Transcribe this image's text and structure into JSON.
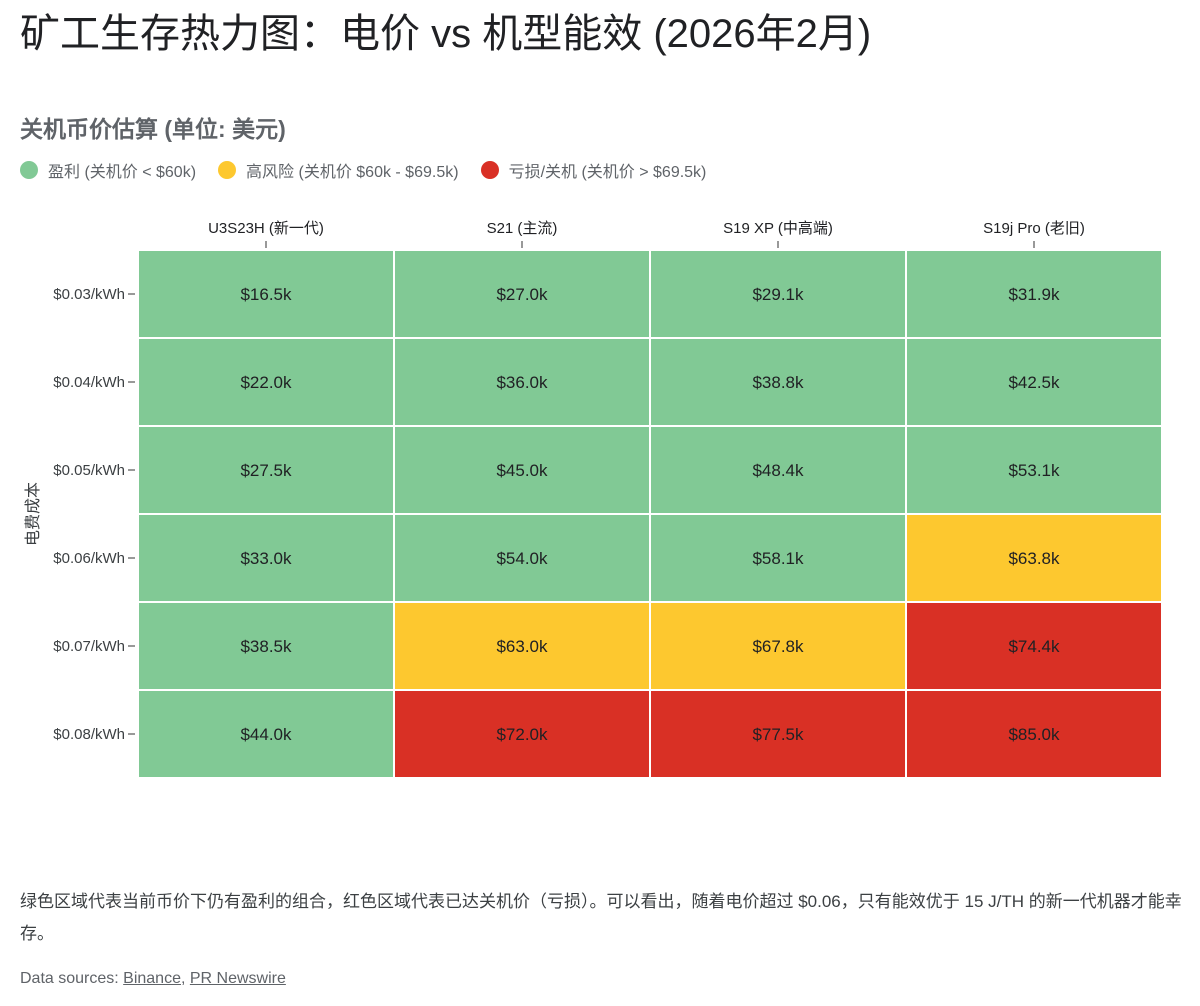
{
  "title": "矿工生存热力图：电价 vs 机型能效 (2026年2月)",
  "subtitle": "关机币价估算 (单位: 美元)",
  "legend": [
    {
      "label": "盈利 (关机价 < $60k)",
      "color": "#81c995"
    },
    {
      "label": "高风险 (关机价 $60k - $69.5k)",
      "color": "#fdc82f"
    },
    {
      "label": "亏损/关机 (关机价 > $69.5k)",
      "color": "#d93025"
    }
  ],
  "chart_data": {
    "type": "heatmap",
    "ylabel": "电费成本",
    "x_categories": [
      "U3S23H (新一代)",
      "S21 (主流)",
      "S19 XP (中高端)",
      "S19j Pro (老旧)"
    ],
    "y_categories": [
      "$0.03/kWh",
      "$0.04/kWh",
      "$0.05/kWh",
      "$0.06/kWh",
      "$0.07/kWh",
      "$0.08/kWh"
    ],
    "values": [
      [
        16.5,
        27.0,
        29.1,
        31.9
      ],
      [
        22.0,
        36.0,
        38.8,
        42.5
      ],
      [
        27.5,
        45.0,
        48.4,
        53.1
      ],
      [
        33.0,
        54.0,
        58.1,
        63.8
      ],
      [
        38.5,
        63.0,
        67.8,
        74.4
      ],
      [
        44.0,
        72.0,
        77.5,
        85.0
      ]
    ],
    "value_unit": "k USD",
    "labels": [
      [
        "$16.5k",
        "$27.0k",
        "$29.1k",
        "$31.9k"
      ],
      [
        "$22.0k",
        "$36.0k",
        "$38.8k",
        "$42.5k"
      ],
      [
        "$27.5k",
        "$45.0k",
        "$48.4k",
        "$53.1k"
      ],
      [
        "$33.0k",
        "$54.0k",
        "$58.1k",
        "$63.8k"
      ],
      [
        "$38.5k",
        "$63.0k",
        "$67.8k",
        "$74.4k"
      ],
      [
        "$44.0k",
        "$72.0k",
        "$77.5k",
        "$85.0k"
      ]
    ],
    "thresholds": [
      60,
      69.5
    ],
    "colors": {
      "profit": "#81c995",
      "risk": "#fdc82f",
      "loss": "#d93025"
    }
  },
  "note": "绿色区域代表当前币价下仍有盈利的组合，红色区域代表已达关机价（亏损）。可以看出，随着电价超过 $0.06，只有能效优于 15 J/TH 的新一代机器才能幸存。",
  "sources": {
    "prefix": "Data sources: ",
    "links": [
      "Binance",
      "PR Newswire"
    ],
    "separator": ", "
  }
}
